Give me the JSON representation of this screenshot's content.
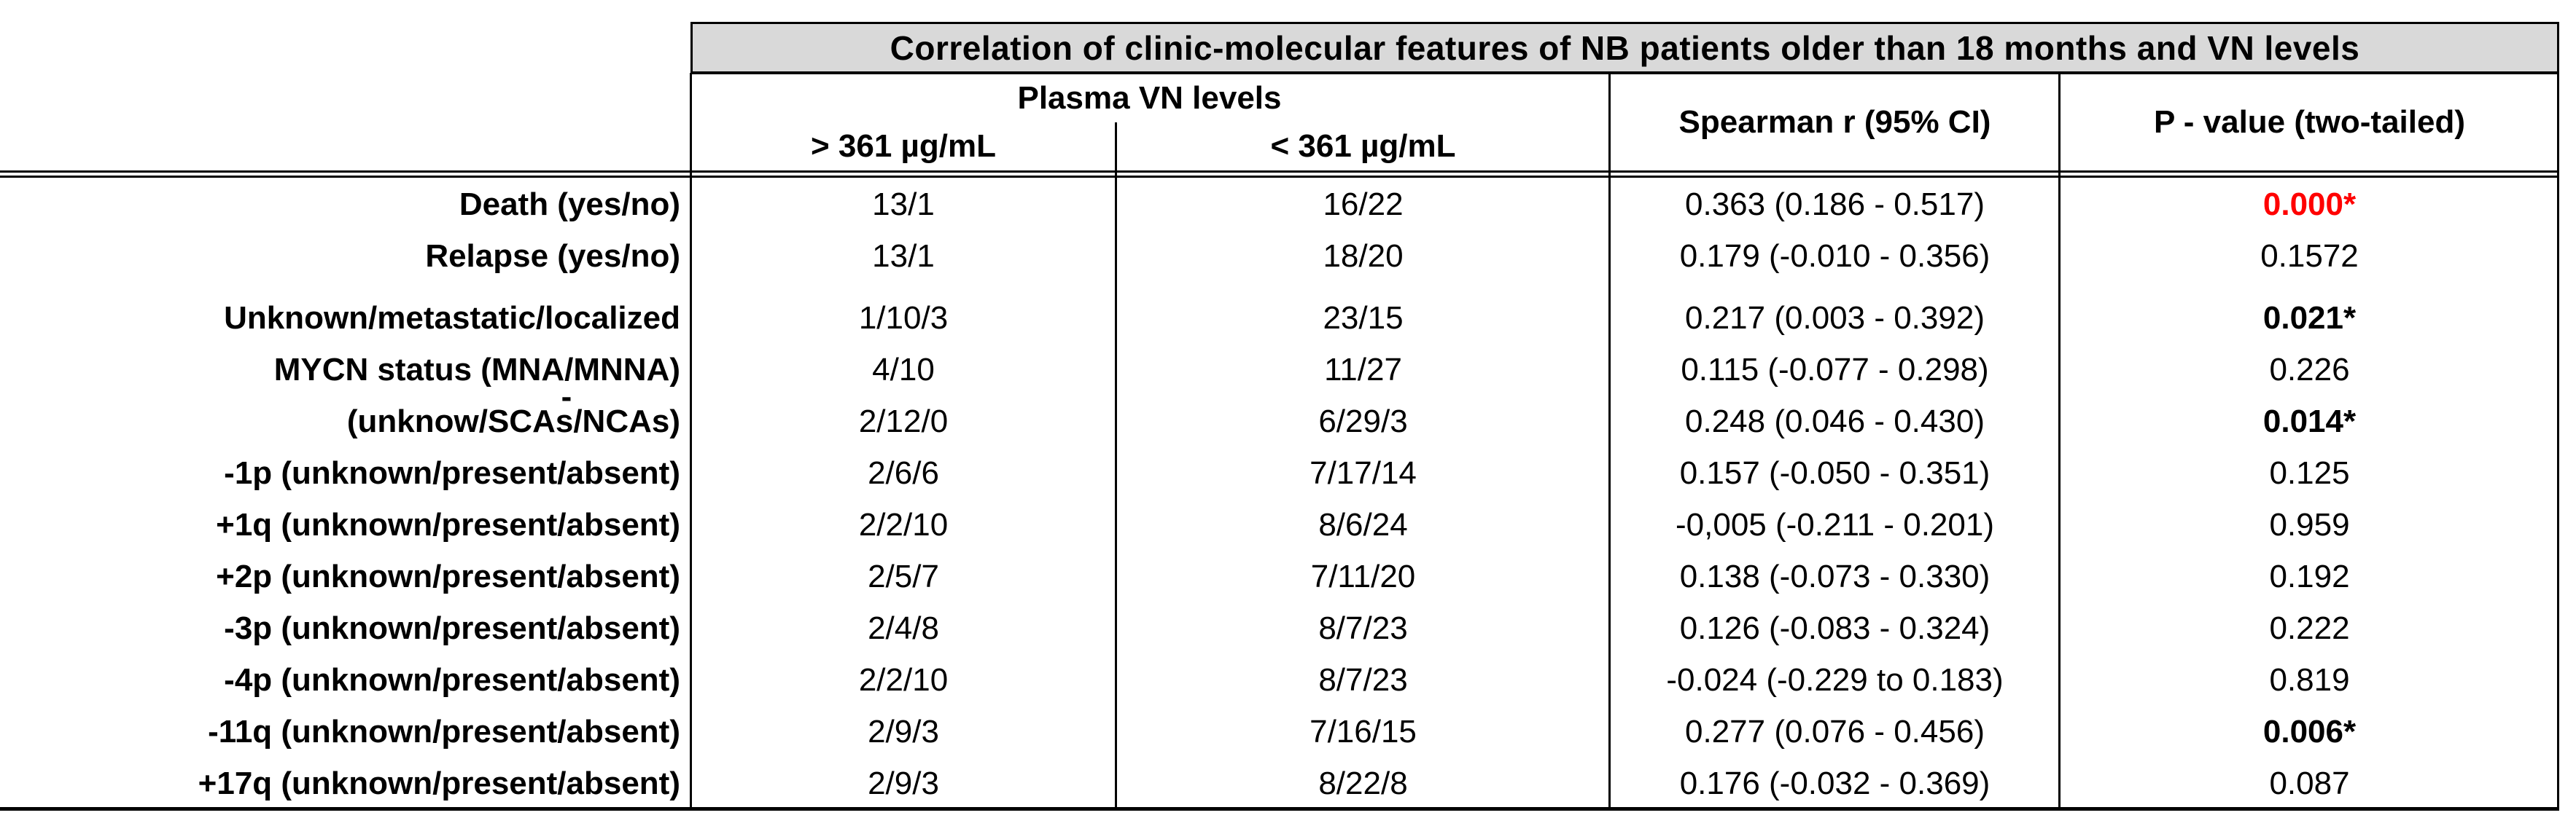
{
  "figure": {
    "title": "Correlation of clinic-molecular features of NB patients older than 18 months and VN levels",
    "columns": {
      "group_header": "Plasma VN levels",
      "vn_high": "> 361 µg/mL",
      "vn_low": "< 361 µg/mL",
      "spearman": "Spearman r (95% CI)",
      "p_value": "P - value (two-tailed)"
    },
    "rows": [
      {
        "label": "Death (yes/no)",
        "vn_high": "13/1",
        "vn_low": "16/22",
        "spearman": "0.363 (0.186 - 0.517)",
        "p": "0.000*",
        "p_style": "red-bold"
      },
      {
        "label": "Relapse (yes/no)",
        "vn_high": "13/1",
        "vn_low": "18/20",
        "spearman": "0.179 (-0.010 - 0.356)",
        "p": "0.1572",
        "p_style": "normal"
      },
      {
        "label": "Unknown/metastatic/localized",
        "vn_high": "1/10/3",
        "vn_low": "23/15",
        "spearman": "0.217 (0.003 - 0.392)",
        "p": "0.021*",
        "p_style": "bold"
      },
      {
        "label": "MYCN status (MNA/MNNA)",
        "vn_high": "4/10",
        "vn_low": "11/27",
        "spearman": "0.115 (-0.077 - 0.298)",
        "p": "0.226",
        "p_style": "normal"
      },
      {
        "label": "(unknow/SCAs/NCAs)",
        "vn_high": "2/12/0",
        "vn_low": "6/29/3",
        "spearman": "0.248 (0.046 - 0.430)",
        "p": "0.014*",
        "p_style": "bold"
      },
      {
        "label": "-1p (unknown/present/absent)",
        "vn_high": "2/6/6",
        "vn_low": "7/17/14",
        "spearman": "0.157 (-0.050 - 0.351)",
        "p": "0.125",
        "p_style": "normal"
      },
      {
        "label": "+1q (unknown/present/absent)",
        "vn_high": "2/2/10",
        "vn_low": "8/6/24",
        "spearman": "-0,005 (-0.211 - 0.201)",
        "p": "0.959",
        "p_style": "normal"
      },
      {
        "label": "+2p (unknown/present/absent)",
        "vn_high": "2/5/7",
        "vn_low": "7/11/20",
        "spearman": "0.138 (-0.073 - 0.330)",
        "p": "0.192",
        "p_style": "normal"
      },
      {
        "label": "-3p (unknown/present/absent)",
        "vn_high": "2/4/8",
        "vn_low": "8/7/23",
        "spearman": "0.126 (-0.083 - 0.324)",
        "p": "0.222",
        "p_style": "normal"
      },
      {
        "label": "-4p (unknown/present/absent)",
        "vn_high": "2/2/10",
        "vn_low": "8/7/23",
        "spearman": "-0.024 (-0.229 to 0.183)",
        "p": "0.819",
        "p_style": "normal"
      },
      {
        "label": "-11q (unknown/present/absent)",
        "vn_high": "2/9/3",
        "vn_low": "7/16/15",
        "spearman": "0.277 (0.076 - 0.456)",
        "p": "0.006*",
        "p_style": "bold"
      },
      {
        "label": "+17q (unknown/present/absent)",
        "vn_high": "2/9/3",
        "vn_low": "8/22/8",
        "spearman": "0.176 (-0.032 - 0.369)",
        "p": "0.087",
        "p_style": "normal"
      }
    ],
    "stray_mark": "-",
    "colors": {
      "title_background": "#d9d9d9",
      "significant_p_color": "#ff0000",
      "text_color": "#000000",
      "line_color": "#000000"
    }
  }
}
